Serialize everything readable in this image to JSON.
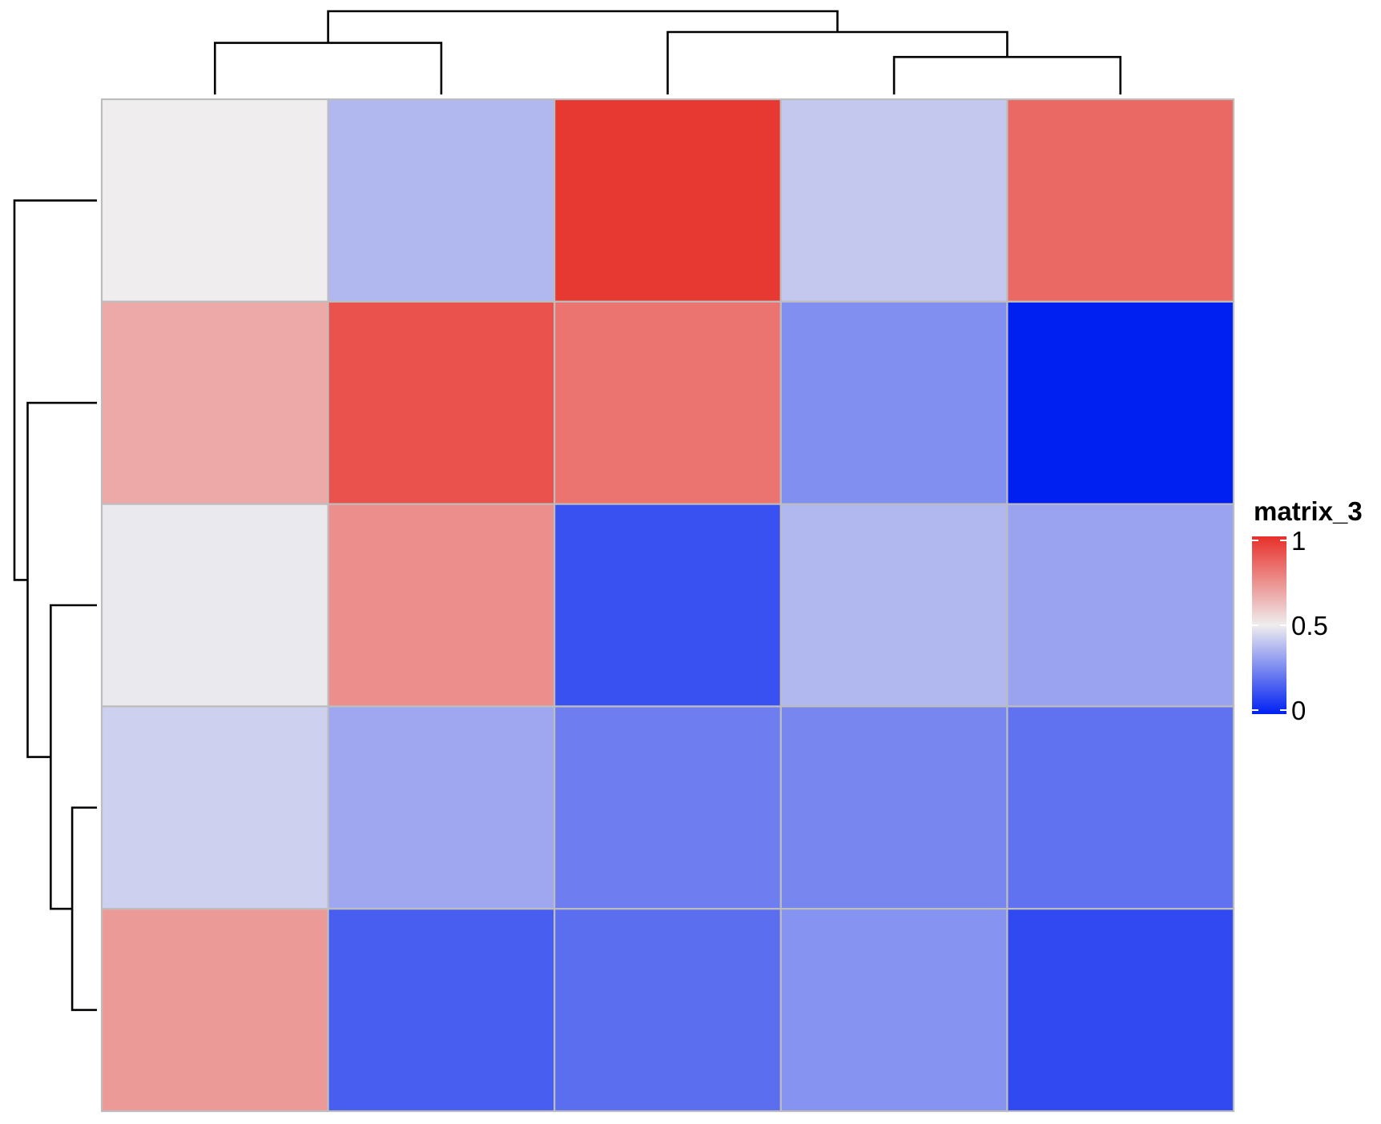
{
  "chart_data": {
    "type": "heatmap",
    "rows": 5,
    "cols": 5,
    "values": [
      [
        0.5,
        0.37,
        0.98,
        0.41,
        0.85
      ],
      [
        0.68,
        0.91,
        0.82,
        0.27,
        0.0
      ],
      [
        0.49,
        0.75,
        0.12,
        0.37,
        0.32
      ],
      [
        0.43,
        0.33,
        0.23,
        0.25,
        0.2
      ],
      [
        0.72,
        0.15,
        0.19,
        0.28,
        0.1
      ]
    ],
    "colorscale": {
      "min": 0,
      "mid": 0.5,
      "max": 1,
      "low_color": "#0020f2",
      "mid_color": "#efedee",
      "high_color": "#e8302a"
    },
    "legend": {
      "title": "matrix_3",
      "ticks": [
        "1",
        "0.5",
        "0"
      ],
      "tick_values": [
        1,
        0.5,
        0
      ],
      "placement": "right"
    },
    "column_dendrogram": {
      "leaf_order": [
        0,
        1,
        2,
        3,
        4
      ],
      "merges": [
        {
          "left": "c0",
          "right": "c1",
          "height": 0.62
        },
        {
          "left": "c3",
          "right": "c4",
          "height": 0.45
        },
        {
          "left": "c2",
          "right": "c3c4",
          "height": 0.75
        },
        {
          "left": "c0c1",
          "right": "c2c3c4",
          "height": 1.0
        }
      ]
    },
    "row_dendrogram": {
      "leaf_order": [
        0,
        1,
        2,
        3,
        4
      ],
      "merges": [
        {
          "left": "r3",
          "right": "r4",
          "height": 0.3
        },
        {
          "left": "r2",
          "right": "r3r4",
          "height": 0.56
        },
        {
          "left": "r1",
          "right": "r2r3r4",
          "height": 0.84
        },
        {
          "left": "r0",
          "right": "r1r2r3r4",
          "height": 1.0
        }
      ]
    },
    "grid_color": "#bdbdbd"
  }
}
